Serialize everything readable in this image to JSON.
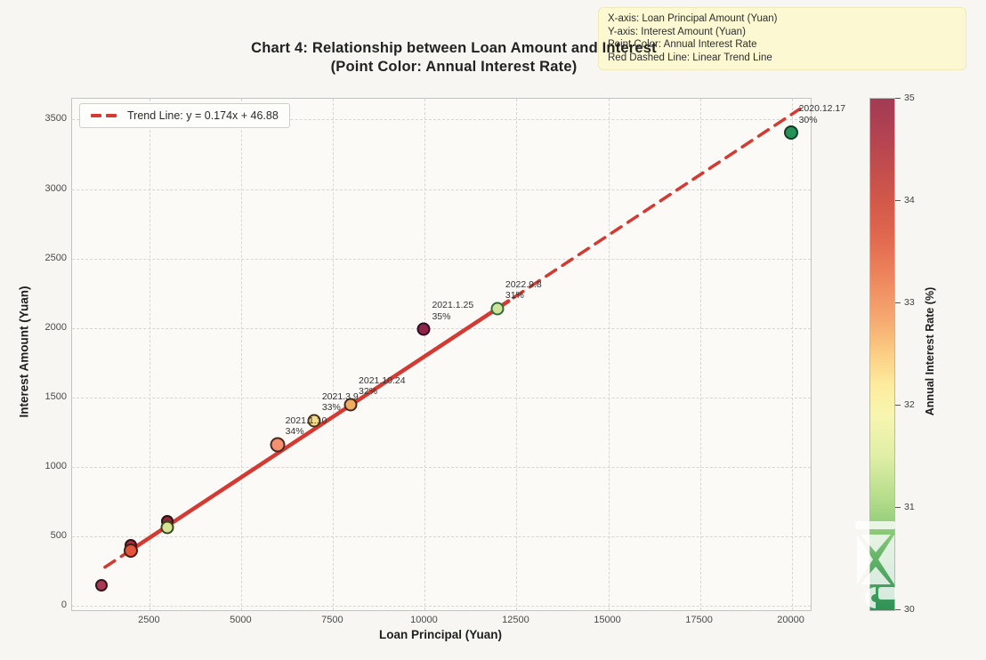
{
  "title": {
    "line1": "Chart 4: Relationship between Loan Amount and Interest",
    "line2": "(Point Color: Annual Interest Rate)"
  },
  "info_box": {
    "lines": [
      "X-axis: Loan Principal Amount (Yuan)",
      "Y-axis: Interest Amount (Yuan)",
      "Point Color: Annual Interest Rate",
      "Red Dashed Line: Linear Trend Line"
    ],
    "background": "#fbf8d2"
  },
  "chart_data": {
    "type": "scatter",
    "title": "Chart 4: Relationship between Loan Amount and Interest (Point Color: Annual Interest Rate)",
    "xlabel": "Loan Principal (Yuan)",
    "ylabel": "Interest Amount (Yuan)",
    "xlim": [
      380,
      20520
    ],
    "ylim": [
      -30,
      3650
    ],
    "x_ticks": [
      2500,
      5000,
      7500,
      10000,
      12500,
      15000,
      17500,
      20000
    ],
    "y_ticks": [
      0,
      500,
      1000,
      1500,
      2000,
      2500,
      3000,
      3500
    ],
    "grid": true,
    "legend_position": "upper-left",
    "trend": {
      "label": "Trend Line: y = 0.174x + 46.88",
      "slope": 0.174,
      "intercept": 46.88,
      "color": "#d43a31",
      "x_start": 1300,
      "x_end": 20250,
      "solid_segment": [
        2100,
        12300
      ]
    },
    "colorbar": {
      "label": "Annual Interest Rate (%)",
      "min": 30,
      "max": 35,
      "ticks": [
        35,
        34,
        33,
        32,
        31,
        30
      ],
      "gradient_stops": [
        {
          "pos": 0,
          "color": "#a23b55"
        },
        {
          "pos": 8,
          "color": "#b44450"
        },
        {
          "pos": 20,
          "color": "#d25849"
        },
        {
          "pos": 28,
          "color": "#e26b50"
        },
        {
          "pos": 36,
          "color": "#ef8a60"
        },
        {
          "pos": 44,
          "color": "#f6ad72"
        },
        {
          "pos": 50,
          "color": "#fbcf85"
        },
        {
          "pos": 56,
          "color": "#fdeb9e"
        },
        {
          "pos": 62,
          "color": "#f7f6b0"
        },
        {
          "pos": 70,
          "color": "#dfeea6"
        },
        {
          "pos": 78,
          "color": "#b5dd8c"
        },
        {
          "pos": 84,
          "color": "#8fcc7a"
        },
        {
          "pos": 92,
          "color": "#55ab63"
        },
        {
          "pos": 100,
          "color": "#2f9156"
        }
      ]
    },
    "points": [
      {
        "x": 1200,
        "y": 140,
        "rate": 35,
        "color": "#a83b52",
        "edge": "#33161f",
        "size": 14
      },
      {
        "x": 2000,
        "y": 430,
        "rate": 35,
        "color": "#a62f3e",
        "edge": "#2c1216",
        "size": 14
      },
      {
        "x": 2000,
        "y": 395,
        "rate": 34,
        "color": "#e2553c",
        "edge": "#471d14",
        "size": 16
      },
      {
        "x": 3000,
        "y": 605,
        "rate": 35,
        "color": "#8e2837",
        "edge": "#2a1216",
        "size": 14
      },
      {
        "x": 3000,
        "y": 560,
        "rate": 32,
        "color": "#d6e594",
        "edge": "#36461e",
        "size": 15
      },
      {
        "x": 6000,
        "y": 1155,
        "rate": 34,
        "color": "#f29070",
        "edge": "#4a2a20",
        "size": 17,
        "date": "2021.1.10",
        "pct": "34%"
      },
      {
        "x": 7000,
        "y": 1330,
        "rate": 33,
        "color": "#f6dd8c",
        "edge": "#46351c",
        "size": 15,
        "date": "2021.3.9",
        "pct": "33%"
      },
      {
        "x": 8000,
        "y": 1445,
        "rate": 32,
        "color": "#f0ad62",
        "edge": "#44281a",
        "size": 15,
        "date": "2021.10.24",
        "pct": "32%"
      },
      {
        "x": 10000,
        "y": 1985,
        "rate": 35,
        "color": "#8e2347",
        "edge": "#2a1020",
        "size": 15,
        "date": "2021.1.25",
        "pct": "35%"
      },
      {
        "x": 12000,
        "y": 2135,
        "rate": 31,
        "color": "#cfe39b",
        "edge": "#2e6b38",
        "size": 15,
        "date": "2022.9.8",
        "pct": "31%"
      },
      {
        "x": 20000,
        "y": 3400,
        "rate": 30,
        "color": "#27915a",
        "edge": "#123c22",
        "size": 16,
        "date": "2020.12.17",
        "pct": "30%"
      }
    ]
  }
}
